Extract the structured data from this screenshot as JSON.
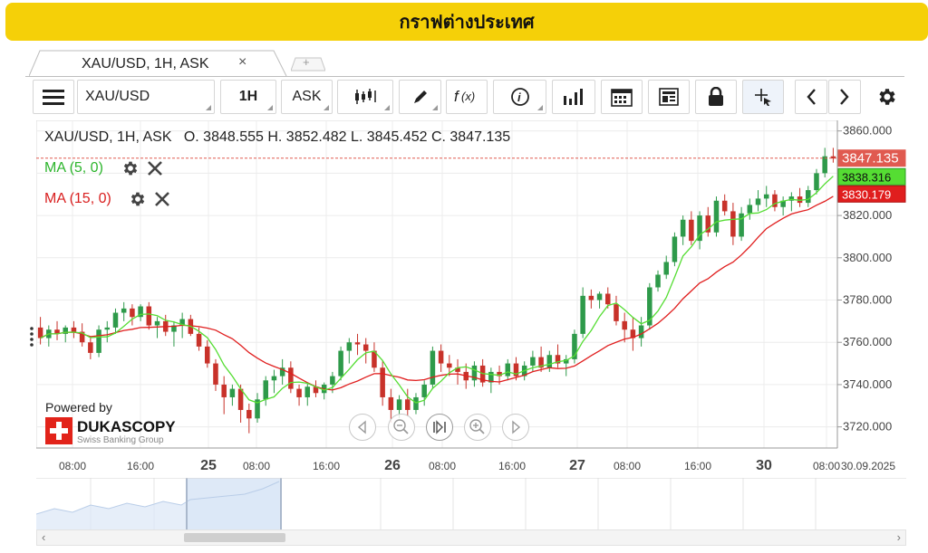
{
  "banner": {
    "title": "กราฟต่างประเทศ"
  },
  "tabs": [
    {
      "label": "XAU/USD, 1H, ASK",
      "close": "×"
    }
  ],
  "tab_add": "+",
  "toolbar": {
    "instrument": "XAU/USD",
    "period": "1H",
    "side": "ASK",
    "icons": [
      "menu-icon",
      "candle-type-icon",
      "draw-pencil-icon",
      "function-icon",
      "info-icon",
      "volume-bars-icon",
      "calendar-icon",
      "news-icon",
      "lock-icon",
      "crosshair-icon",
      "prev-icon",
      "next-icon",
      "settings-icon"
    ]
  },
  "legend": {
    "ohlc": "XAU/USD, 1H, ASK   O. 3848.555 H. 3852.482 L. 3845.452 C. 3847.135",
    "ma5": "MA (5, 0)",
    "ma15": "MA (15, 0)"
  },
  "price_axis": {
    "ticks": [
      "3860.000",
      "3840.000",
      "3820.000",
      "3800.000",
      "3780.000",
      "3760.000",
      "3740.000",
      "3720.000"
    ],
    "last_price": "3847.135",
    "ma5_value": "3838.316",
    "ma15_value": "3830.179"
  },
  "time_axis": {
    "labels": [
      {
        "text": "08:00",
        "bold": false
      },
      {
        "text": "16:00",
        "bold": false
      },
      {
        "text": "25",
        "bold": true
      },
      {
        "text": "08:00",
        "bold": false
      },
      {
        "text": "16:00",
        "bold": false
      },
      {
        "text": "26",
        "bold": true
      },
      {
        "text": "08:00",
        "bold": false
      },
      {
        "text": "16:00",
        "bold": false
      },
      {
        "text": "27",
        "bold": true
      },
      {
        "text": "08:00",
        "bold": false
      },
      {
        "text": "16:00",
        "bold": false
      },
      {
        "text": "30",
        "bold": true
      },
      {
        "text": "08:00",
        "bold": false
      },
      {
        "text": "30.09.2025",
        "bold": false
      }
    ]
  },
  "branding": {
    "powered_by": "Powered by",
    "brand": "DUKASCOPY",
    "tagline": "Swiss Banking Group"
  },
  "colors": {
    "bull": "#2e9a4a",
    "bear": "#c8322a",
    "ma5": "#55dd33",
    "ma15": "#e01e1e",
    "banner": "#f5d008",
    "last": "#e05a50"
  },
  "chart_data": {
    "type": "candlestick",
    "ohlc": [
      [
        3767,
        3772,
        3759,
        3762
      ],
      [
        3762,
        3768,
        3758,
        3766
      ],
      [
        3766,
        3770,
        3761,
        3764
      ],
      [
        3764,
        3768,
        3760,
        3767
      ],
      [
        3767,
        3770,
        3762,
        3765
      ],
      [
        3765,
        3769,
        3758,
        3760
      ],
      [
        3760,
        3762,
        3752,
        3755
      ],
      [
        3755,
        3768,
        3753,
        3766
      ],
      [
        3766,
        3770,
        3760,
        3767
      ],
      [
        3767,
        3776,
        3764,
        3774
      ],
      [
        3774,
        3779,
        3770,
        3776
      ],
      [
        3776,
        3778,
        3768,
        3772
      ],
      [
        3772,
        3778,
        3770,
        3777
      ],
      [
        3777,
        3779,
        3766,
        3768
      ],
      [
        3768,
        3772,
        3762,
        3770
      ],
      [
        3770,
        3773,
        3763,
        3765
      ],
      [
        3765,
        3770,
        3758,
        3768
      ],
      [
        3768,
        3774,
        3762,
        3771
      ],
      [
        3771,
        3773,
        3763,
        3764
      ],
      [
        3764,
        3767,
        3756,
        3758
      ],
      [
        3758,
        3761,
        3748,
        3750
      ],
      [
        3750,
        3752,
        3737,
        3740
      ],
      [
        3740,
        3744,
        3726,
        3734
      ],
      [
        3734,
        3740,
        3730,
        3738
      ],
      [
        3738,
        3740,
        3722,
        3728
      ],
      [
        3728,
        3731,
        3717,
        3724
      ],
      [
        3724,
        3736,
        3722,
        3733
      ],
      [
        3733,
        3744,
        3730,
        3742
      ],
      [
        3742,
        3747,
        3736,
        3744
      ],
      [
        3744,
        3752,
        3740,
        3748
      ],
      [
        3748,
        3751,
        3736,
        3738
      ],
      [
        3738,
        3740,
        3730,
        3734
      ],
      [
        3734,
        3741,
        3730,
        3739
      ],
      [
        3739,
        3742,
        3734,
        3736
      ],
      [
        3736,
        3741,
        3733,
        3740
      ],
      [
        3740,
        3746,
        3736,
        3744
      ],
      [
        3744,
        3758,
        3742,
        3756
      ],
      [
        3756,
        3762,
        3750,
        3760
      ],
      [
        3760,
        3764,
        3754,
        3759
      ],
      [
        3759,
        3762,
        3750,
        3756
      ],
      [
        3756,
        3760,
        3746,
        3748
      ],
      [
        3748,
        3751,
        3730,
        3734
      ],
      [
        3734,
        3738,
        3722,
        3728
      ],
      [
        3728,
        3735,
        3724,
        3733
      ],
      [
        3733,
        3738,
        3725,
        3728
      ],
      [
        3728,
        3736,
        3726,
        3734
      ],
      [
        3734,
        3742,
        3730,
        3740
      ],
      [
        3740,
        3758,
        3738,
        3756
      ],
      [
        3756,
        3759,
        3746,
        3750
      ],
      [
        3750,
        3754,
        3744,
        3748
      ],
      [
        3748,
        3752,
        3740,
        3746
      ],
      [
        3746,
        3750,
        3738,
        3742
      ],
      [
        3742,
        3751,
        3739,
        3749
      ],
      [
        3749,
        3752,
        3739,
        3741
      ],
      [
        3741,
        3748,
        3736,
        3746
      ],
      [
        3746,
        3749,
        3740,
        3744
      ],
      [
        3744,
        3752,
        3742,
        3750
      ],
      [
        3750,
        3753,
        3742,
        3744
      ],
      [
        3744,
        3751,
        3742,
        3749
      ],
      [
        3749,
        3756,
        3746,
        3753
      ],
      [
        3753,
        3758,
        3746,
        3748
      ],
      [
        3748,
        3756,
        3746,
        3754
      ],
      [
        3754,
        3759,
        3748,
        3750
      ],
      [
        3750,
        3754,
        3744,
        3752
      ],
      [
        3752,
        3766,
        3750,
        3764
      ],
      [
        3764,
        3786,
        3762,
        3782
      ],
      [
        3782,
        3785,
        3776,
        3780
      ],
      [
        3780,
        3784,
        3776,
        3783
      ],
      [
        3783,
        3786,
        3776,
        3778
      ],
      [
        3778,
        3782,
        3768,
        3770
      ],
      [
        3770,
        3774,
        3760,
        3766
      ],
      [
        3766,
        3772,
        3756,
        3762
      ],
      [
        3762,
        3772,
        3758,
        3768
      ],
      [
        3768,
        3788,
        3766,
        3786
      ],
      [
        3786,
        3794,
        3784,
        3792
      ],
      [
        3792,
        3801,
        3790,
        3798
      ],
      [
        3798,
        3812,
        3796,
        3810
      ],
      [
        3810,
        3820,
        3806,
        3818
      ],
      [
        3818,
        3822,
        3806,
        3808
      ],
      [
        3808,
        3822,
        3804,
        3820
      ],
      [
        3820,
        3824,
        3810,
        3812
      ],
      [
        3812,
        3829,
        3810,
        3827
      ],
      [
        3827,
        3830,
        3820,
        3822
      ],
      [
        3822,
        3826,
        3806,
        3810
      ],
      [
        3810,
        3824,
        3808,
        3821
      ],
      [
        3821,
        3828,
        3818,
        3825
      ],
      [
        3825,
        3832,
        3822,
        3828
      ],
      [
        3828,
        3834,
        3824,
        3830
      ],
      [
        3830,
        3832,
        3822,
        3824
      ],
      [
        3824,
        3829,
        3820,
        3827
      ],
      [
        3827,
        3831,
        3822,
        3829
      ],
      [
        3829,
        3833,
        3824,
        3826
      ],
      [
        3826,
        3834,
        3824,
        3832
      ],
      [
        3832,
        3842,
        3830,
        3840
      ],
      [
        3840,
        3852,
        3838,
        3848
      ],
      [
        3848,
        3852,
        3845,
        3847
      ]
    ],
    "ylim": [
      3710,
      3865
    ]
  }
}
